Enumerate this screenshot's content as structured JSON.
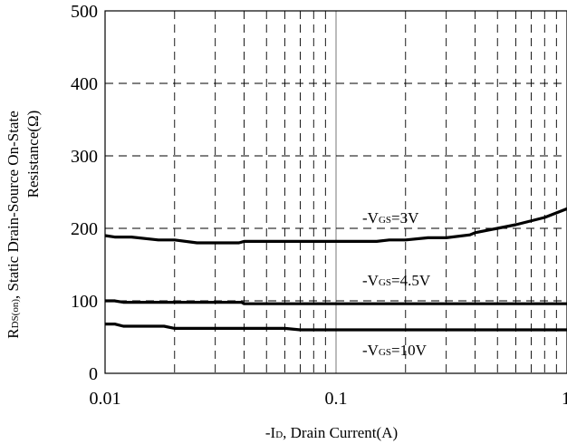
{
  "chart_data": {
    "type": "line",
    "xscale": "log",
    "xlim": [
      0.01,
      1
    ],
    "ylim": [
      0,
      500
    ],
    "xticks": [
      0.01,
      0.1,
      1
    ],
    "xtick_labels": [
      "0.01",
      "0.1",
      "1"
    ],
    "yticks": [
      0,
      100,
      200,
      300,
      400,
      500
    ],
    "ytick_labels": [
      "0",
      "100",
      "200",
      "300",
      "400",
      "500"
    ],
    "xlabel": {
      "prefix": "-I",
      "sub": "D",
      "rest": ", Drain Current(A)"
    },
    "ylabel": {
      "line1_prefix": "R",
      "line1_sub": "DS(on)",
      "line1_rest": ", Static Drain-Source On-State",
      "line2": "Resistance(Ω)"
    },
    "grid": true,
    "series": [
      {
        "name": "-VGS=3V",
        "label": {
          "prefix": "-V",
          "sub": "GS",
          "rest": "=3V"
        },
        "x": [
          0.01,
          0.011,
          0.013,
          0.017,
          0.02,
          0.025,
          0.03,
          0.038,
          0.04,
          0.05,
          0.07,
          0.1,
          0.15,
          0.17,
          0.2,
          0.25,
          0.3,
          0.38,
          0.4,
          0.5,
          0.6,
          0.8,
          1.0
        ],
        "y": [
          190,
          188,
          188,
          184,
          184,
          180,
          180,
          180,
          182,
          182,
          182,
          182,
          182,
          184,
          184,
          187,
          187,
          191,
          194,
          200,
          205,
          215,
          227
        ]
      },
      {
        "name": "-VGS=4.5V",
        "label": {
          "prefix": "-V",
          "sub": "GS",
          "rest": "=4.5V"
        },
        "x": [
          0.01,
          0.011,
          0.012,
          0.02,
          0.03,
          0.039,
          0.04,
          0.1,
          1.0
        ],
        "y": [
          100,
          100,
          98,
          98,
          98,
          98,
          96,
          96,
          96
        ]
      },
      {
        "name": "-VGS=10V",
        "label": {
          "prefix": "-V",
          "sub": "GS",
          "rest": "=10V"
        },
        "x": [
          0.01,
          0.011,
          0.012,
          0.018,
          0.02,
          0.06,
          0.07,
          0.1,
          1.0
        ],
        "y": [
          68,
          68,
          65,
          65,
          62,
          62,
          60,
          60,
          60
        ]
      }
    ]
  }
}
